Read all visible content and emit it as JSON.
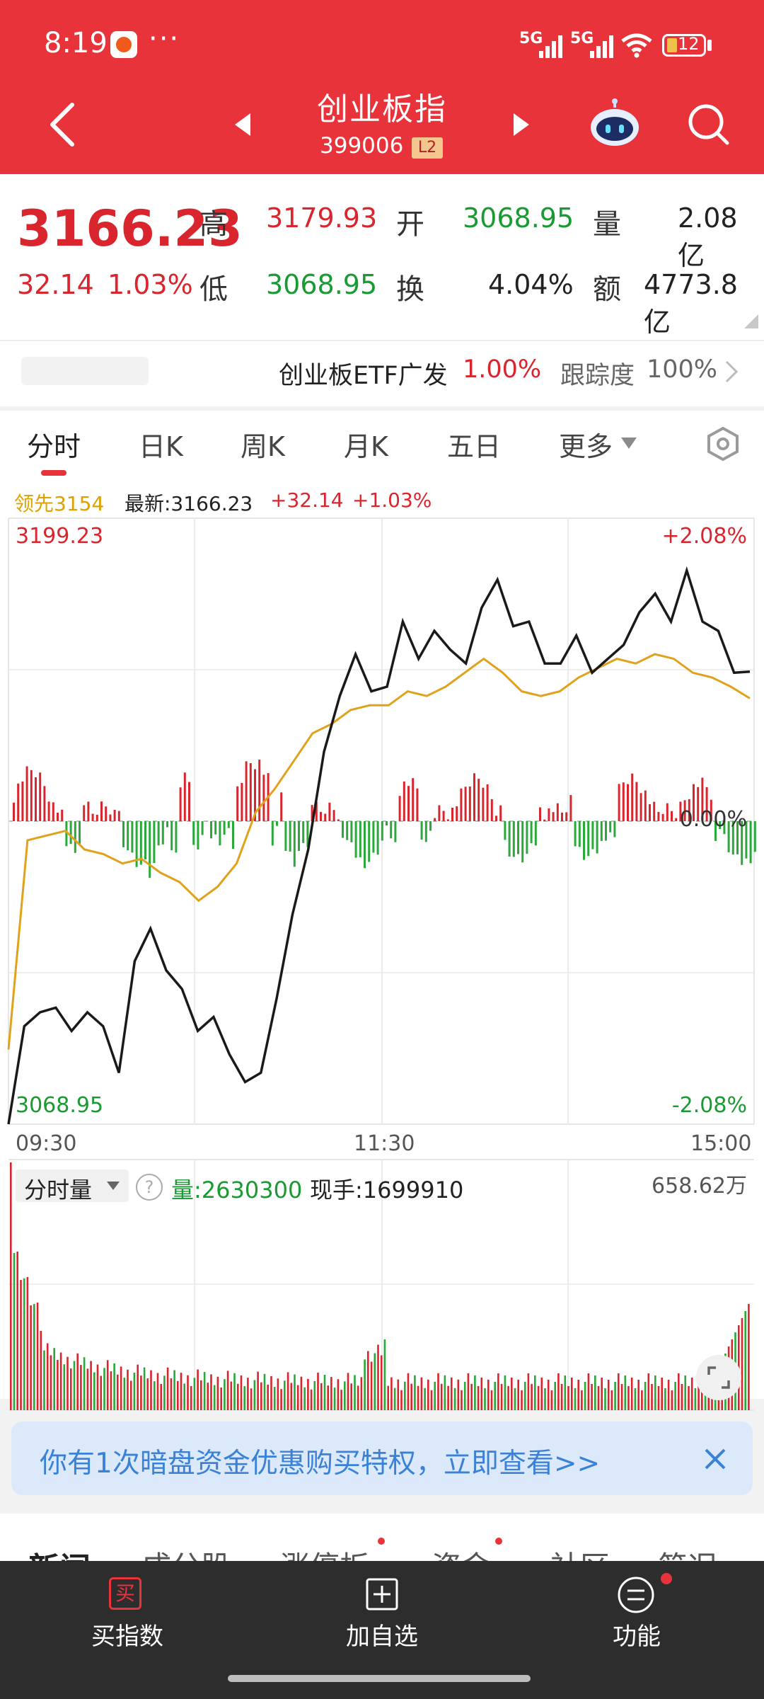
{
  "status_bar": {
    "time": "8:19",
    "dots": "···",
    "net1": "5G",
    "net2": "5G",
    "battery": "12"
  },
  "header": {
    "title": "创业板指",
    "code": "399006",
    "badge": "L2"
  },
  "quote": {
    "price": "3166.23",
    "change": "32.14",
    "change_pct": "1.03%",
    "high_label": "高",
    "high": "3179.93",
    "low_label": "低",
    "low": "3068.95",
    "open_label": "开",
    "open": "3068.95",
    "turnover_label": "换",
    "turnover": "4.04%",
    "volume_label": "量",
    "volume": "2.08亿",
    "amount_label": "额",
    "amount": "4773.8亿"
  },
  "etf": {
    "name": "创业板ETF广发",
    "pct": "1.00%",
    "track_label": "跟踪度",
    "track": "100%"
  },
  "tabs": [
    "分时",
    "日K",
    "周K",
    "月K",
    "五日",
    "更多"
  ],
  "chart_header": {
    "lead": "领先3154",
    "latest": "最新:3166.23",
    "chg": "+32.14",
    "chg_pct": "+1.03%"
  },
  "chart_data": {
    "type": "line",
    "y_top": "3199.23",
    "y_bottom": "3068.95",
    "y_top_pct": "+2.08%",
    "y_mid_pct": "0.00%",
    "y_bottom_pct": "-2.08%",
    "x_labels": [
      "09:30",
      "11:30",
      "15:00"
    ],
    "series": [
      {
        "name": "",
        "values": [
          3068.95,
          3090,
          3093,
          3094,
          3089,
          3093,
          3090,
          3080,
          3104,
          3111,
          3102,
          3098,
          3089,
          3092,
          3084,
          3078,
          3080,
          3096,
          3114,
          3128,
          3149,
          3161,
          3170,
          3162,
          3163,
          3177,
          3169,
          3175,
          3171,
          3168,
          3180,
          3186,
          3176,
          3177,
          3168,
          3168,
          3174,
          3166,
          3169,
          3172,
          3179,
          3183,
          3177,
          3188,
          3177,
          3175,
          3166,
          3166.23
        ]
      },
      {
        "name": "",
        "values": [
          3085,
          3130,
          3131,
          3132,
          3128,
          3127,
          3125,
          3126,
          3123,
          3121,
          3117,
          3120,
          3125,
          3136,
          3141,
          3147,
          3153,
          3155,
          3158,
          3159,
          3159,
          3162,
          3161,
          3163,
          3166,
          3169,
          3166,
          3162,
          3161,
          3162,
          3165,
          3167,
          3169,
          3168,
          3170,
          3169,
          3166,
          3165,
          3163,
          3160.5
        ]
      }
    ]
  },
  "volume_panel": {
    "label": "分时量",
    "help": "?",
    "volume": "量:2630300",
    "current": "现手:1699910",
    "max": "658.62万"
  },
  "banner": {
    "text": "你有1次暗盘资金优惠购买特权，立即查看>>"
  },
  "news_tabs": [
    "新闻",
    "成分股",
    "涨停板",
    "资金",
    "社区",
    "简况"
  ],
  "bottom_bar": {
    "buy_icon": "买",
    "buy": "买指数",
    "add": "加自选",
    "func": "功能"
  }
}
